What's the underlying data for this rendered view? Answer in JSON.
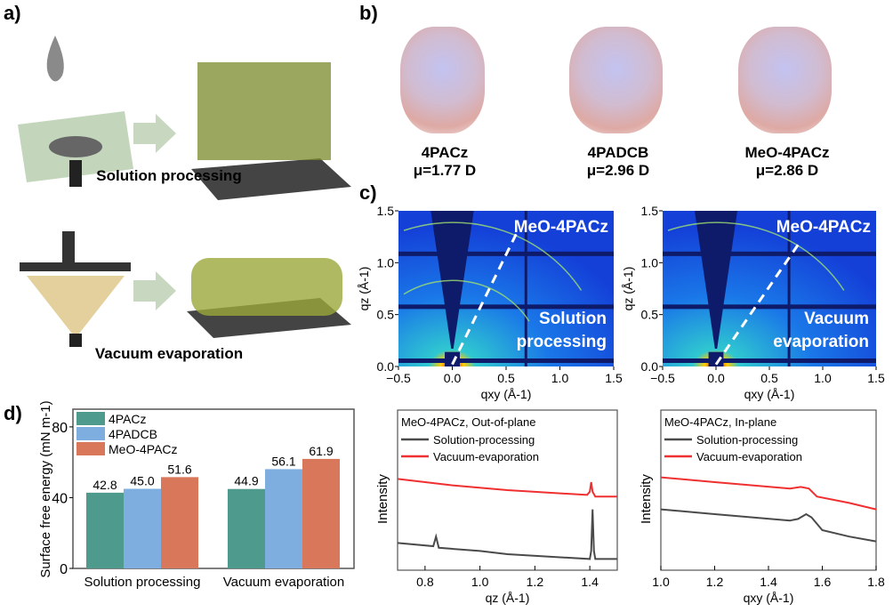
{
  "panels": {
    "a": "a)",
    "b": "b)",
    "c": "c)",
    "d": "d)"
  },
  "panel_a": {
    "top_caption": "Solution processing",
    "bottom_caption": "Vacuum evaporation"
  },
  "panel_b": {
    "molecules": [
      {
        "name": "4PACz",
        "dipole": "μ=1.77 D"
      },
      {
        "name": "4PADCB",
        "dipole": "μ=2.96 D"
      },
      {
        "name": "MeO-4PACz",
        "dipole": "μ=2.86 D"
      }
    ]
  },
  "chart_data": [
    {
      "type": "heatmap",
      "title": "MeO-4PACz",
      "annotation": "Solution processing",
      "xlabel": "qxy (Å-1)",
      "ylabel": "qz (Å-1)",
      "xlim": [
        -0.5,
        1.5
      ],
      "ylim": [
        0,
        1.5
      ],
      "xticks": [
        "−0.5",
        "0.0",
        "0.5",
        "1.0",
        "1.5"
      ],
      "yticks": [
        "0.0",
        "0.5",
        "1.0",
        "1.5"
      ],
      "rings_q": [
        0.84,
        1.41
      ]
    },
    {
      "type": "heatmap",
      "title": "MeO-4PACz",
      "annotation": "Vacuum evaporation",
      "xlabel": "qxy (Å-1)",
      "ylabel": "qz (Å-1)",
      "xlim": [
        -0.5,
        1.5
      ],
      "ylim": [
        0,
        1.5
      ],
      "xticks": [
        "−0.5",
        "0.0",
        "0.5",
        "1.0",
        "1.5"
      ],
      "yticks": [
        "0.0",
        "0.5",
        "1.0",
        "1.5"
      ],
      "rings_q": [
        1.41
      ]
    },
    {
      "type": "bar",
      "ylabel": "Surface free energy (mN m-1)",
      "ylim": [
        0,
        90
      ],
      "yticks": [
        "0",
        "40",
        "80"
      ],
      "categories": [
        "Solution processing",
        "Vacuum evaporation"
      ],
      "series": [
        {
          "name": "4PACz",
          "color": "#4e9a8c",
          "values": [
            42.8,
            44.9
          ],
          "labels": [
            "42.8",
            "44.9"
          ]
        },
        {
          "name": "4PADCB",
          "color": "#7eaee0",
          "values": [
            45.0,
            56.1
          ],
          "labels": [
            "45.0",
            "56.1"
          ]
        },
        {
          "name": "MeO-4PACz",
          "color": "#d8775a",
          "values": [
            51.6,
            61.9
          ],
          "labels": [
            "51.6",
            "61.9"
          ]
        }
      ]
    },
    {
      "type": "line",
      "title": "MeO-4PACz, Out-of-plane",
      "xlabel": "qz (Å-1)",
      "ylabel": "Intensity",
      "xlim": [
        0.7,
        1.5
      ],
      "ylim": [
        0,
        1
      ],
      "xticks": [
        "0.8",
        "1.0",
        "1.2",
        "1.4"
      ],
      "series": [
        {
          "name": "Solution-processing",
          "color": "#4a4a4a",
          "points": [
            [
              0.7,
              0.17
            ],
            [
              0.83,
              0.15
            ],
            [
              0.84,
              0.21
            ],
            [
              0.85,
              0.14
            ],
            [
              1.0,
              0.12
            ],
            [
              1.1,
              0.1
            ],
            [
              1.4,
              0.07
            ],
            [
              1.405,
              0.12
            ],
            [
              1.41,
              0.38
            ],
            [
              1.415,
              0.12
            ],
            [
              1.42,
              0.07
            ],
            [
              1.5,
              0.07
            ]
          ]
        },
        {
          "name": "Vacuum-evaporation",
          "color": "#f03030",
          "points": [
            [
              0.7,
              0.57
            ],
            [
              0.9,
              0.53
            ],
            [
              1.1,
              0.5
            ],
            [
              1.39,
              0.47
            ],
            [
              1.4,
              0.49
            ],
            [
              1.405,
              0.55
            ],
            [
              1.41,
              0.49
            ],
            [
              1.42,
              0.46
            ],
            [
              1.5,
              0.46
            ]
          ]
        }
      ]
    },
    {
      "type": "line",
      "title": "MeO-4PACz, In-plane",
      "xlabel": "qxy (Å-1)",
      "ylabel": "Intensity",
      "xlim": [
        1.0,
        1.8
      ],
      "ylim": [
        0,
        1
      ],
      "xticks": [
        "1.0",
        "1.2",
        "1.4",
        "1.6",
        "1.8"
      ],
      "series": [
        {
          "name": "Solution-processing",
          "color": "#4a4a4a",
          "points": [
            [
              1.0,
              0.38
            ],
            [
              1.2,
              0.35
            ],
            [
              1.48,
              0.31
            ],
            [
              1.51,
              0.32
            ],
            [
              1.54,
              0.35
            ],
            [
              1.56,
              0.33
            ],
            [
              1.6,
              0.25
            ],
            [
              1.7,
              0.21
            ],
            [
              1.8,
              0.18
            ]
          ]
        },
        {
          "name": "Vacuum-evaporation",
          "color": "#f03030",
          "points": [
            [
              1.0,
              0.58
            ],
            [
              1.2,
              0.55
            ],
            [
              1.48,
              0.51
            ],
            [
              1.52,
              0.52
            ],
            [
              1.55,
              0.51
            ],
            [
              1.58,
              0.46
            ],
            [
              1.7,
              0.42
            ],
            [
              1.8,
              0.38
            ]
          ]
        }
      ]
    }
  ]
}
